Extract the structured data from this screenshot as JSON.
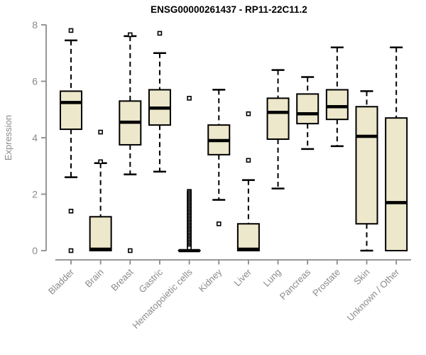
{
  "title": "ENSG00000261437 - RP11-22C11.2",
  "chart_data": {
    "type": "boxplot",
    "title": "ENSG00000261437 - RP11-22C11.2",
    "xlabel": "",
    "ylabel": "Expression",
    "ylim": [
      0,
      8
    ],
    "yticks": [
      0,
      2,
      4,
      6,
      8
    ],
    "grid": false,
    "legend": "none",
    "categories": [
      "Bladder",
      "Brain",
      "Breast",
      "Gastric",
      "Hematopoietic cells",
      "Kidney",
      "Liver",
      "Lung",
      "Pancreas",
      "Prostate",
      "Skin",
      "Unknown / Other"
    ],
    "series": [
      {
        "name": "Bladder",
        "whisker_low": 2.6,
        "q1": 4.3,
        "median": 5.25,
        "q3": 5.65,
        "whisker_high": 7.45,
        "outliers": [
          7.8,
          1.4,
          0
        ]
      },
      {
        "name": "Brain",
        "whisker_low": 0,
        "q1": 0,
        "median": 0.05,
        "q3": 1.2,
        "whisker_high": 3.1,
        "outliers": [
          4.2,
          3.15
        ]
      },
      {
        "name": "Breast",
        "whisker_low": 2.7,
        "q1": 3.75,
        "median": 4.55,
        "q3": 5.3,
        "whisker_high": 7.6,
        "outliers": [
          7.65,
          0
        ]
      },
      {
        "name": "Gastric",
        "whisker_low": 2.8,
        "q1": 4.45,
        "median": 5.05,
        "q3": 5.7,
        "whisker_high": 7.0,
        "outliers": [
          7.7
        ]
      },
      {
        "name": "Hematopoietic cells",
        "whisker_low": 0,
        "q1": 0,
        "median": 0,
        "q3": 0,
        "whisker_high": 0,
        "outliers": [
          5.4,
          2.1,
          2.05,
          2.0,
          1.95,
          1.9,
          1.85,
          1.8,
          1.75,
          1.7,
          1.65,
          1.6,
          1.55,
          1.5,
          1.45,
          1.4,
          1.35,
          1.3,
          1.25,
          1.2,
          1.15,
          1.1,
          1.05,
          1.0,
          0.95,
          0.9,
          0.85,
          0.8,
          0.75,
          0.7,
          0.65,
          0.6,
          0.55,
          0.5,
          0.45,
          0.4,
          0.35,
          0.3,
          0.25,
          0.2,
          0.15,
          0.1
        ]
      },
      {
        "name": "Kidney",
        "whisker_low": 1.8,
        "q1": 3.4,
        "median": 3.9,
        "q3": 4.45,
        "whisker_high": 5.7,
        "outliers": [
          0.95
        ]
      },
      {
        "name": "Liver",
        "whisker_low": 0,
        "q1": 0,
        "median": 0.05,
        "q3": 0.95,
        "whisker_high": 2.5,
        "outliers": [
          4.85,
          3.2
        ]
      },
      {
        "name": "Lung",
        "whisker_low": 2.2,
        "q1": 3.95,
        "median": 4.9,
        "q3": 5.4,
        "whisker_high": 6.4,
        "outliers": []
      },
      {
        "name": "Pancreas",
        "whisker_low": 3.6,
        "q1": 4.5,
        "median": 4.85,
        "q3": 5.55,
        "whisker_high": 6.15,
        "outliers": []
      },
      {
        "name": "Prostate",
        "whisker_low": 3.7,
        "q1": 4.65,
        "median": 5.1,
        "q3": 5.7,
        "whisker_high": 7.2,
        "outliers": []
      },
      {
        "name": "Skin",
        "whisker_low": 0,
        "q1": 0.95,
        "median": 4.05,
        "q3": 5.1,
        "whisker_high": 5.65,
        "outliers": []
      },
      {
        "name": "Unknown / Other",
        "whisker_low": 0,
        "q1": 0,
        "median": 1.7,
        "q3": 4.7,
        "whisker_high": 7.2,
        "outliers": []
      }
    ],
    "colors": {
      "box_fill": "#EDE7CB",
      "box_stroke": "#000000",
      "median": "#000000",
      "whisker": "#000000",
      "outlier_stroke": "#000000",
      "axis": "#8A8A8A",
      "tick_label": "#8A8A8A",
      "title": "#000000",
      "background": "#FFFFFF"
    }
  }
}
